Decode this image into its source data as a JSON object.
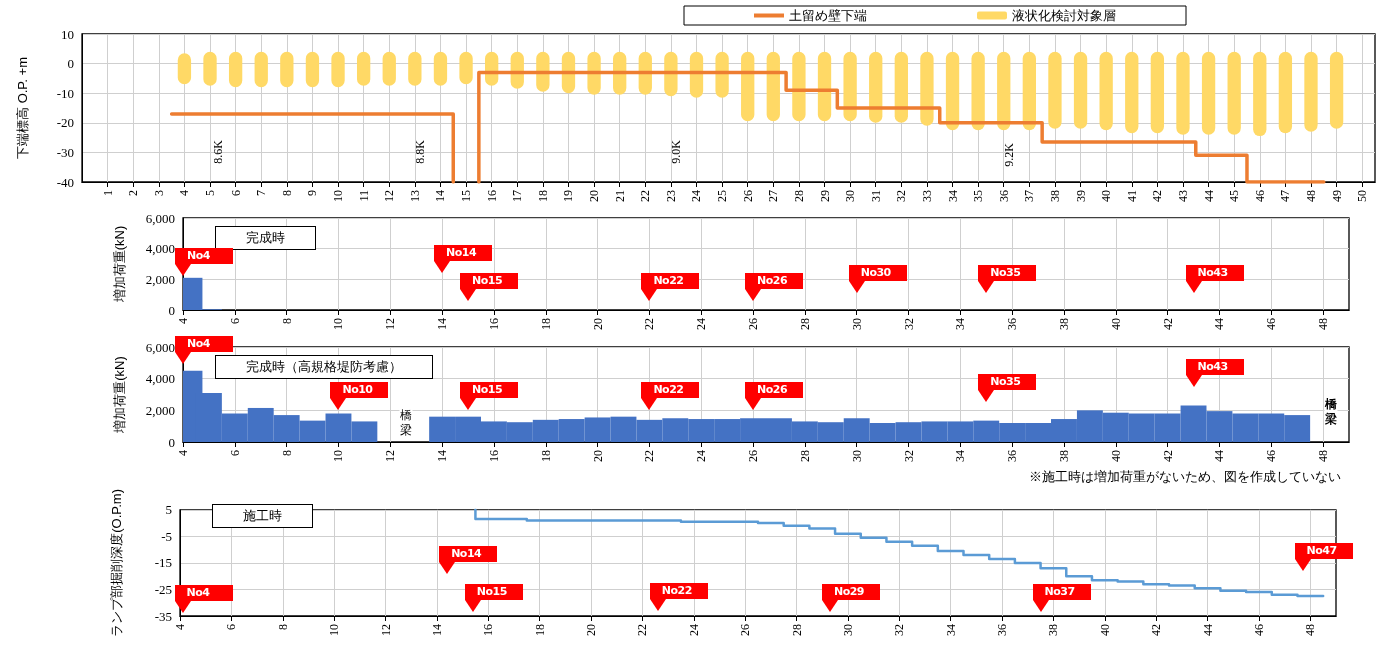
{
  "chart_data": [
    {
      "type": "line",
      "ylabel": "下端標高 O.P. +m",
      "xlim": [
        0,
        50.5
      ],
      "xticks": [
        1,
        2,
        3,
        4,
        5,
        6,
        7,
        8,
        9,
        10,
        11,
        12,
        13,
        14,
        15,
        16,
        17,
        18,
        19,
        20,
        21,
        22,
        23,
        24,
        25,
        26,
        27,
        28,
        29,
        30,
        31,
        32,
        33,
        34,
        35,
        36,
        37,
        38,
        39,
        40,
        41,
        42,
        43,
        44,
        45,
        46,
        47,
        48,
        49,
        50
      ],
      "ylim": [
        -40,
        10
      ],
      "yticks": [
        -40,
        -30,
        -20,
        -10,
        0,
        10
      ],
      "grid": true,
      "legend": "top right",
      "series": [
        {
          "name": "土留め壁下端",
          "color": "#ed7d31",
          "x": [
            3.5,
            14.5,
            14.5,
            15,
            15.5,
            15.5,
            27.5,
            27.5,
            29.5,
            29.5,
            33.5,
            33.5,
            37.5,
            37.5,
            43.5,
            43.5,
            45.5,
            45.5,
            48.5
          ],
          "values": [
            -17,
            -17,
            -40,
            null,
            -40,
            -3,
            -3,
            -9,
            -9,
            -15,
            -15,
            -20,
            -20,
            -26.5,
            -26.5,
            -31,
            -31,
            -40,
            -40
          ]
        },
        {
          "name": "液状化検討対象層",
          "type": "bar",
          "color": "#ffd966",
          "x": [
            4,
            5,
            6,
            7,
            8,
            9,
            10,
            11,
            12,
            13,
            14,
            15,
            16,
            17,
            18,
            19,
            20,
            21,
            22,
            23,
            24,
            25,
            26,
            27,
            28,
            29,
            30,
            31,
            32,
            33,
            34,
            35,
            36,
            37,
            38,
            39,
            40,
            41,
            42,
            43,
            44,
            45,
            46,
            47,
            48,
            49
          ],
          "base": [
            -7,
            -7.5,
            -8,
            -8,
            -8,
            -8,
            -8,
            -7.5,
            -7.5,
            -7.5,
            -7.5,
            -7,
            -7.5,
            -8.5,
            -9.5,
            -10,
            -10.5,
            -10.5,
            -10.5,
            -11,
            -11.5,
            -11.5,
            -19.5,
            -19.5,
            -19.5,
            -19.5,
            -19.5,
            -20,
            -20,
            -21,
            -22.5,
            -22.5,
            -22.5,
            -22.5,
            -22,
            -22,
            -22.5,
            -23.5,
            -23.5,
            -24,
            -24,
            -24,
            -24.5,
            -23.5,
            -23,
            -22
          ],
          "values": [
            10.5,
            11.5,
            12,
            12,
            12,
            12,
            12,
            11.5,
            11.5,
            11.5,
            11.5,
            11,
            11.5,
            12.5,
            13.5,
            14,
            14.5,
            14.5,
            14.5,
            15,
            15.5,
            15.5,
            23.5,
            23.5,
            23.5,
            23.5,
            23.5,
            24,
            24,
            25,
            26.5,
            26.5,
            26.5,
            26.5,
            26,
            26,
            26.5,
            27.5,
            27.5,
            28,
            28,
            28,
            28.5,
            27.5,
            27,
            26
          ]
        }
      ],
      "annotations": [
        "8.6K",
        "8.8K",
        "9.0K",
        "9.2K"
      ]
    },
    {
      "type": "bar",
      "title": "完成時",
      "ylabel": "増加荷重(kN)",
      "xlim": [
        4,
        49
      ],
      "xticks": [
        4,
        6,
        8,
        10,
        12,
        14,
        16,
        18,
        20,
        22,
        24,
        26,
        28,
        30,
        32,
        34,
        36,
        38,
        40,
        42,
        44,
        46,
        48
      ],
      "ylim": [
        0,
        6000
      ],
      "yticks": [
        0,
        {
          "value": 2000,
          "label": "2,000"
        },
        {
          "value": 4000,
          "label": "4,000"
        },
        {
          "value": 6000,
          "label": "6,000"
        }
      ],
      "grid": true,
      "color": "#4472c4",
      "x": [
        4.25,
        5
      ],
      "values": [
        2100,
        50
      ],
      "annotations": [
        "No4",
        "No14",
        "No15",
        "No22",
        "No26",
        "No30",
        "No35",
        "No43"
      ]
    },
    {
      "type": "bar",
      "title": "完成時（高規格堤防考慮）",
      "ylabel": "増加荷重(kN)",
      "xlim": [
        4,
        49
      ],
      "xticks": [
        4,
        6,
        8,
        10,
        12,
        14,
        16,
        18,
        20,
        22,
        24,
        26,
        28,
        30,
        32,
        34,
        36,
        38,
        40,
        42,
        44,
        46,
        48
      ],
      "ylim": [
        0,
        6000
      ],
      "yticks": [
        0,
        {
          "value": 2000,
          "label": "2,000"
        },
        {
          "value": 4000,
          "label": "4,000"
        },
        {
          "value": 6000,
          "label": "6,000"
        }
      ],
      "grid": true,
      "color": "#4472c4",
      "x": [
        4.25,
        5,
        6,
        7,
        8,
        9,
        10,
        11,
        12,
        13,
        14,
        15,
        16,
        17,
        18,
        19,
        20,
        21,
        22,
        23,
        24,
        25,
        26,
        27,
        28,
        29,
        30,
        31,
        32,
        33,
        34,
        35,
        36,
        37,
        38,
        39,
        40,
        41,
        42,
        43,
        44,
        45,
        46,
        47
      ],
      "values": [
        4500,
        3100,
        1800,
        2150,
        1700,
        1350,
        1800,
        1300,
        null,
        null,
        1600,
        1600,
        1300,
        1250,
        1400,
        1450,
        1550,
        1600,
        1400,
        1500,
        1450,
        1450,
        1500,
        1500,
        1300,
        1250,
        1500,
        1200,
        1250,
        1300,
        1300,
        1350,
        1200,
        1200,
        1450,
        2000,
        1850,
        1800,
        1800,
        2300,
        1950,
        1800,
        1800,
        1700
      ],
      "annotations": [
        "No4",
        "No10",
        "No15",
        "No22",
        "No26",
        "No35",
        "No43",
        "橋梁",
        "橋梁",
        "※施工時は増加荷重がないため、図を作成していない"
      ]
    },
    {
      "type": "step",
      "title": "施工時",
      "ylabel": "ランプ部掘削深度(O.P.m)",
      "xlim": [
        4,
        49
      ],
      "xticks": [
        4,
        6,
        8,
        10,
        12,
        14,
        16,
        18,
        20,
        22,
        24,
        26,
        28,
        30,
        32,
        34,
        36,
        38,
        40,
        42,
        44,
        46,
        48
      ],
      "ylim": [
        -35,
        5
      ],
      "yticks": [
        -35,
        -25,
        -15,
        -5,
        5
      ],
      "grid": true,
      "color": "#5b9bd5",
      "x": [
        15.5,
        15.5,
        17.5,
        23.5,
        26.5,
        27.5,
        28.5,
        29.5,
        30.5,
        31.5,
        32.5,
        33.5,
        34.5,
        35.5,
        36.5,
        37.5,
        38.5,
        39.5,
        40.5,
        41.5,
        42.5,
        43.5,
        44.5,
        45.5,
        46.5,
        47.5,
        48.5
      ],
      "values": [
        5,
        1.5,
        1,
        0.5,
        0,
        -1,
        -2,
        -4,
        -5.5,
        -7,
        -8.5,
        -10.5,
        -12,
        -13.5,
        -15,
        -17,
        -20,
        -21.5,
        -22,
        -23,
        -23.5,
        -24.5,
        -25.5,
        -26,
        -27,
        -27.5,
        -27.5
      ],
      "annotations": [
        "No4",
        "No14",
        "No15",
        "No22",
        "No29",
        "No37",
        "No47"
      ]
    }
  ]
}
